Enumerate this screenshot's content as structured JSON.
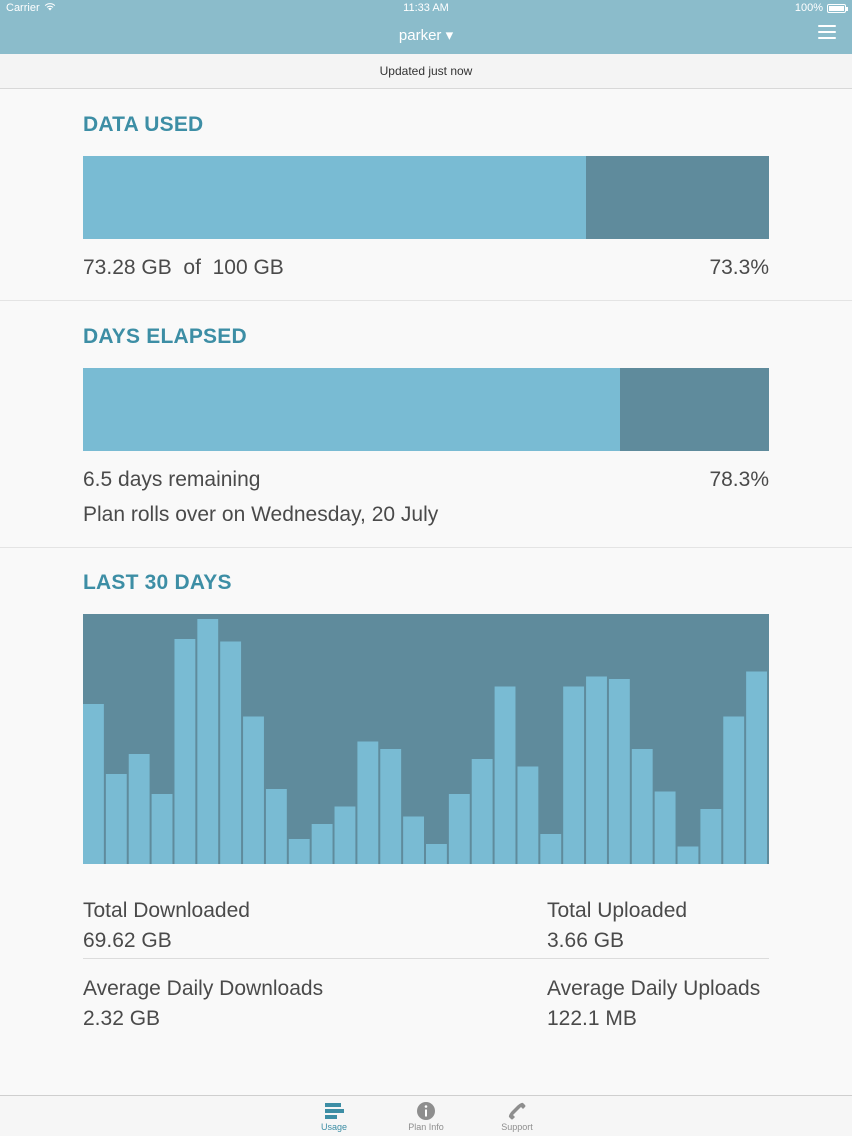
{
  "status_bar": {
    "carrier": "Carrier",
    "time": "11:33 AM",
    "battery": "100%"
  },
  "nav": {
    "title": "parker ▾"
  },
  "updated": "Updated just now",
  "data_used": {
    "title": "DATA USED",
    "used": "73.28 GB",
    "of": "of",
    "total": "100 GB",
    "percent_label": "73.3%",
    "fraction": 0.733
  },
  "days_elapsed": {
    "title": "DAYS ELAPSED",
    "remaining": "6.5 days remaining",
    "rollover": "Plan rolls over on Wednesday, 20 July",
    "percent_label": "78.3%",
    "fraction": 0.783
  },
  "last30": {
    "title": "LAST 30 DAYS"
  },
  "chart_data": {
    "type": "bar",
    "values": [
      0.64,
      0.36,
      0.44,
      0.28,
      0.9,
      0.98,
      0.89,
      0.59,
      0.3,
      0.1,
      0.16,
      0.23,
      0.49,
      0.46,
      0.19,
      0.08,
      0.28,
      0.42,
      0.71,
      0.39,
      0.12,
      0.71,
      0.75,
      0.74,
      0.46,
      0.29,
      0.07,
      0.22,
      0.59,
      0.77
    ],
    "ylim": [
      0,
      1
    ],
    "colors": {
      "bar": "#79bbd3",
      "background": "#5f8b9c"
    }
  },
  "stats": {
    "total_downloaded_label": "Total Downloaded",
    "total_downloaded_value": "69.62 GB",
    "total_uploaded_label": "Total Uploaded",
    "total_uploaded_value": "3.66 GB",
    "avg_daily_downloads_label": "Average Daily Downloads",
    "avg_daily_downloads_value": "2.32 GB",
    "avg_daily_uploads_label": "Average Daily Uploads",
    "avg_daily_uploads_value": "122.1 MB"
  },
  "tabs": [
    {
      "label": "Usage",
      "icon": "usage-icon",
      "active": true
    },
    {
      "label": "Plan Info",
      "icon": "info-icon",
      "active": false
    },
    {
      "label": "Support",
      "icon": "phone-icon",
      "active": false
    }
  ],
  "colors": {
    "accent": "#3d8ea5",
    "nav": "#8bbccb",
    "bar_fill": "#79bbd3",
    "bar_track": "#5f8b9c"
  }
}
